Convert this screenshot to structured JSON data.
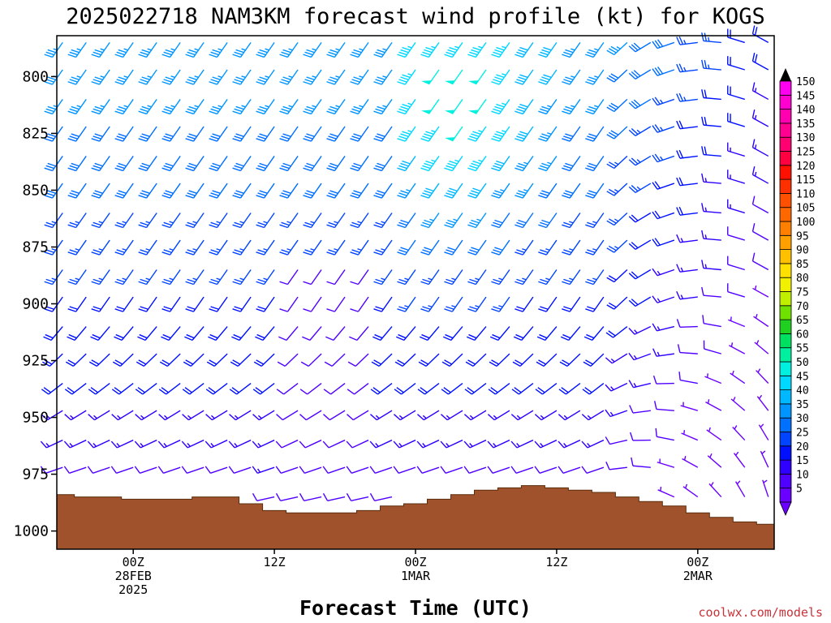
{
  "chart_data": {
    "type": "wind_barb_time_height",
    "title": "2025022718 NAM3KM forecast wind profile (kt) for KOGS",
    "xlabel": "Forecast Time (UTC)",
    "credit": "coolwx.com/models",
    "ylim": [
      1008,
      782
    ],
    "y_scale": "pressure (mb), top to bottom",
    "y_ticks": [
      {
        "value": 800,
        "label": "800"
      },
      {
        "value": 825,
        "label": "825"
      },
      {
        "value": 850,
        "label": "850"
      },
      {
        "value": 875,
        "label": "875"
      },
      {
        "value": 900,
        "label": "900"
      },
      {
        "value": 925,
        "label": "925"
      },
      {
        "value": 950,
        "label": "950"
      },
      {
        "value": 975,
        "label": "975"
      },
      {
        "value": 1000,
        "label": "1000"
      }
    ],
    "xlim": [
      -6.5,
      54.5
    ],
    "x_units": "hours after 00Z 28FEB 2025",
    "x_ticks": [
      {
        "value": 0,
        "lines": [
          "00Z",
          "28FEB",
          "2025"
        ]
      },
      {
        "value": 12,
        "lines": [
          "12Z"
        ]
      },
      {
        "value": 24,
        "lines": [
          "00Z",
          "1MAR"
        ]
      },
      {
        "value": 36,
        "lines": [
          "12Z"
        ]
      },
      {
        "value": 48,
        "lines": [
          "00Z",
          "2MAR"
        ]
      }
    ],
    "surface_pressure": {
      "hours": [
        -6,
        -4,
        -2,
        0,
        2,
        4,
        6,
        8,
        10,
        12,
        14,
        16,
        18,
        20,
        22,
        24,
        26,
        28,
        30,
        32,
        34,
        36,
        38,
        40,
        42,
        44,
        46,
        48,
        50,
        52,
        54
      ],
      "mb": [
        984,
        985,
        985,
        986,
        986,
        986,
        985,
        985,
        988,
        991,
        992,
        992,
        992,
        991,
        989,
        988,
        986,
        984,
        982,
        981,
        980,
        981,
        982,
        983,
        985,
        987,
        989,
        992,
        994,
        996,
        997
      ],
      "color": "#a0522d"
    },
    "barb_rows_mb": [
      785,
      797,
      810,
      822,
      835,
      847,
      860,
      872,
      885,
      897,
      910,
      922,
      935,
      947,
      960,
      972,
      985
    ],
    "barb_columns_hours_step": 2,
    "wind_speed_range_kt": [
      5,
      55
    ],
    "wind_note": "southwesterly 25-40 kt aloft, maximum ~55 kt near 800-830 mb around 00Z-06Z 1MAR; light variable winds near surface",
    "colorbar": {
      "levels": [
        5,
        10,
        15,
        20,
        25,
        30,
        35,
        40,
        45,
        50,
        55,
        60,
        65,
        70,
        75,
        80,
        85,
        90,
        95,
        100,
        105,
        110,
        115,
        120,
        125,
        130,
        135,
        140,
        145,
        150
      ],
      "colors": [
        "#6a00ff",
        "#5000ff",
        "#3000ff",
        "#0010ff",
        "#0044ff",
        "#0070ff",
        "#0095ff",
        "#00b8ff",
        "#00d8ff",
        "#00f0e0",
        "#00f0a0",
        "#00e060",
        "#20d020",
        "#70e000",
        "#c0f000",
        "#f0f000",
        "#ffe000",
        "#ffc000",
        "#ffa000",
        "#ff8000",
        "#ff6800",
        "#ff5000",
        "#ff3000",
        "#ff1000",
        "#ff0040",
        "#ff0070",
        "#ff0090",
        "#ff00b0",
        "#ff00d0",
        "#ff00f0"
      ]
    }
  }
}
